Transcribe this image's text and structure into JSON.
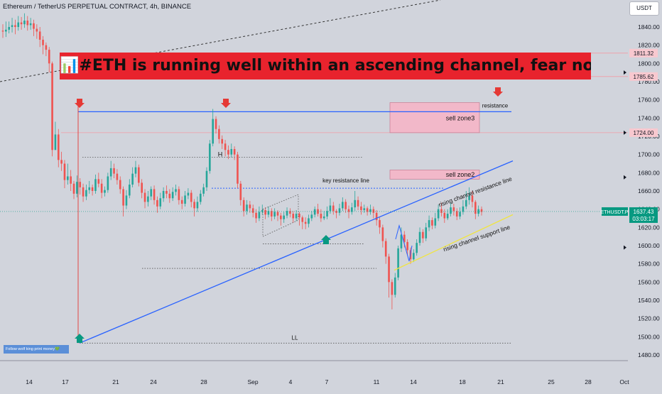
{
  "header": {
    "symbol_title": "Ethereum / TetherUS PERPETUAL CONTRACT, 4h, BINANCE",
    "currency": "USDT"
  },
  "headline": "📊#ETH is running well within an ascending channel, fear not📈",
  "watermark": "Follow wolf king print money💚",
  "colors": {
    "background": "#d1d4dc",
    "up_candle": "#26a69a",
    "down_candle": "#ef5350",
    "channel_line": "#2962ff",
    "support_line": "#f0e442",
    "zone_fill": "#f2b8c9",
    "headline_bg": "#e8232d",
    "arrow_down": "#e53935",
    "arrow_up": "#089981"
  },
  "chart_data": {
    "type": "candlestick",
    "yaxis": {
      "range": [
        1465,
        1855
      ],
      "ticks": [
        1480,
        1500,
        1520,
        1540,
        1560,
        1580,
        1600,
        1620,
        1640,
        1660,
        1680,
        1700,
        1720,
        1740,
        1760,
        1780,
        1800,
        1820,
        1840
      ]
    },
    "xaxis": {
      "labels": [
        "14",
        "17",
        "21",
        "24",
        "28",
        "Sep",
        "4",
        "7",
        "11",
        "14",
        "18",
        "21",
        "25",
        "28",
        "Oct"
      ]
    },
    "price_labels": [
      {
        "price": 1811.32,
        "text": "1811.32"
      },
      {
        "price": 1785.62,
        "text": "1785.62"
      },
      {
        "price": 1724.0,
        "text": "1724.00"
      }
    ],
    "current_price": {
      "price": 1637.43,
      "symbol": "ETHUSDT.P",
      "text": "1637.43",
      "countdown": "03:03:17"
    },
    "annotations": {
      "sell_zone_3": "sell zone3",
      "sell_zone_2": "sell zone2",
      "resistance": "resistance",
      "key_resistance": "key resistance line",
      "channel_resistance": "rising channel resistance line",
      "channel_support": "rising channel support line",
      "ll": "LL",
      "h": "H"
    },
    "zones": [
      {
        "name": "sell zone3",
        "x_from": "12",
        "x_to": "17",
        "low": 1724,
        "high": 1757
      },
      {
        "name": "sell zone2",
        "x_from": "12",
        "x_to": "17",
        "low": 1673,
        "high": 1683
      }
    ],
    "levels": [
      {
        "name": "resistance",
        "price": 1747
      },
      {
        "name": "key resistance line",
        "price": 1663
      },
      {
        "name": "LL",
        "price": 1493
      }
    ],
    "candles": [
      [
        1836,
        1835,
        1843,
        1828
      ],
      [
        1835,
        1837,
        1846,
        1829
      ],
      [
        1837,
        1840,
        1846,
        1833
      ],
      [
        1840,
        1842,
        1850,
        1834
      ],
      [
        1842,
        1840,
        1848,
        1832
      ],
      [
        1840,
        1845,
        1852,
        1836
      ],
      [
        1845,
        1843,
        1851,
        1837
      ],
      [
        1843,
        1847,
        1855,
        1839
      ],
      [
        1847,
        1842,
        1852,
        1836
      ],
      [
        1842,
        1844,
        1850,
        1837
      ],
      [
        1844,
        1838,
        1848,
        1830
      ],
      [
        1838,
        1835,
        1843,
        1827
      ],
      [
        1835,
        1826,
        1840,
        1818
      ],
      [
        1826,
        1820,
        1830,
        1810
      ],
      [
        1820,
        1815,
        1823,
        1808
      ],
      [
        1815,
        1800,
        1818,
        1790
      ],
      [
        1800,
        1705,
        1802,
        1698
      ],
      [
        1705,
        1722,
        1736,
        1705
      ],
      [
        1722,
        1694,
        1728,
        1686
      ],
      [
        1694,
        1690,
        1703,
        1682
      ],
      [
        1690,
        1672,
        1694,
        1663
      ],
      [
        1672,
        1676,
        1690,
        1667
      ],
      [
        1676,
        1668,
        1683,
        1660
      ],
      [
        1668,
        1657,
        1671,
        1651
      ],
      [
        1657,
        1670,
        1677,
        1653
      ],
      [
        1670,
        1664,
        1674,
        1656
      ],
      [
        1664,
        1654,
        1668,
        1648
      ],
      [
        1654,
        1661,
        1667,
        1650
      ],
      [
        1661,
        1664,
        1671,
        1657
      ],
      [
        1664,
        1660,
        1667,
        1655
      ],
      [
        1660,
        1673,
        1678,
        1657
      ],
      [
        1673,
        1668,
        1680,
        1664
      ],
      [
        1668,
        1658,
        1673,
        1652
      ],
      [
        1658,
        1661,
        1665,
        1654
      ],
      [
        1661,
        1676,
        1680,
        1658
      ],
      [
        1676,
        1685,
        1693,
        1672
      ],
      [
        1685,
        1679,
        1690,
        1674
      ],
      [
        1679,
        1672,
        1684,
        1667
      ],
      [
        1672,
        1662,
        1676,
        1657
      ],
      [
        1662,
        1644,
        1665,
        1632
      ],
      [
        1644,
        1655,
        1661,
        1640
      ],
      [
        1655,
        1667,
        1673,
        1652
      ],
      [
        1667,
        1679,
        1686,
        1664
      ],
      [
        1679,
        1686,
        1693,
        1675
      ],
      [
        1686,
        1669,
        1689,
        1665
      ],
      [
        1669,
        1658,
        1673,
        1652
      ],
      [
        1658,
        1648,
        1662,
        1641
      ],
      [
        1648,
        1654,
        1660,
        1643
      ],
      [
        1654,
        1662,
        1665,
        1650
      ],
      [
        1662,
        1650,
        1666,
        1645
      ],
      [
        1650,
        1643,
        1654,
        1636
      ],
      [
        1643,
        1652,
        1658,
        1640
      ],
      [
        1652,
        1660,
        1664,
        1648
      ],
      [
        1660,
        1657,
        1666,
        1652
      ],
      [
        1657,
        1652,
        1662,
        1647
      ],
      [
        1652,
        1659,
        1664,
        1649
      ],
      [
        1659,
        1662,
        1667,
        1655
      ],
      [
        1662,
        1650,
        1665,
        1645
      ],
      [
        1650,
        1646,
        1654,
        1640
      ],
      [
        1646,
        1655,
        1660,
        1643
      ],
      [
        1655,
        1658,
        1663,
        1651
      ],
      [
        1658,
        1648,
        1661,
        1642
      ],
      [
        1648,
        1641,
        1651,
        1632
      ],
      [
        1641,
        1648,
        1654,
        1637
      ],
      [
        1648,
        1657,
        1661,
        1645
      ],
      [
        1657,
        1664,
        1668,
        1654
      ],
      [
        1664,
        1682,
        1686,
        1660
      ],
      [
        1682,
        1712,
        1716,
        1679
      ],
      [
        1712,
        1739,
        1750,
        1709
      ],
      [
        1739,
        1728,
        1742,
        1723
      ],
      [
        1728,
        1717,
        1732,
        1712
      ],
      [
        1717,
        1712,
        1721,
        1706
      ],
      [
        1712,
        1705,
        1716,
        1698
      ],
      [
        1705,
        1700,
        1710,
        1695
      ],
      [
        1700,
        1706,
        1712,
        1697
      ],
      [
        1706,
        1700,
        1709,
        1694
      ],
      [
        1700,
        1668,
        1703,
        1663
      ],
      [
        1668,
        1650,
        1671,
        1644
      ],
      [
        1650,
        1638,
        1653,
        1632
      ],
      [
        1638,
        1645,
        1650,
        1634
      ],
      [
        1645,
        1641,
        1649,
        1636
      ],
      [
        1641,
        1636,
        1645,
        1631
      ],
      [
        1636,
        1630,
        1640,
        1625
      ],
      [
        1630,
        1637,
        1643,
        1627
      ],
      [
        1637,
        1639,
        1645,
        1634
      ],
      [
        1639,
        1634,
        1642,
        1629
      ],
      [
        1634,
        1638,
        1643,
        1631
      ],
      [
        1638,
        1632,
        1641,
        1627
      ],
      [
        1632,
        1637,
        1641,
        1629
      ],
      [
        1637,
        1633,
        1639,
        1627
      ],
      [
        1633,
        1629,
        1636,
        1622
      ],
      [
        1629,
        1633,
        1637,
        1625
      ],
      [
        1633,
        1638,
        1642,
        1630
      ],
      [
        1638,
        1635,
        1641,
        1631
      ],
      [
        1635,
        1630,
        1638,
        1625
      ],
      [
        1630,
        1635,
        1639,
        1627
      ],
      [
        1635,
        1631,
        1637,
        1622
      ],
      [
        1631,
        1626,
        1633,
        1618
      ],
      [
        1626,
        1624,
        1631,
        1618
      ],
      [
        1624,
        1630,
        1634,
        1620
      ],
      [
        1630,
        1634,
        1638,
        1627
      ],
      [
        1634,
        1640,
        1643,
        1631
      ],
      [
        1640,
        1635,
        1646,
        1632
      ],
      [
        1635,
        1630,
        1640,
        1626
      ],
      [
        1630,
        1632,
        1638,
        1628
      ],
      [
        1632,
        1638,
        1643,
        1629
      ],
      [
        1638,
        1644,
        1652,
        1635
      ],
      [
        1644,
        1638,
        1648,
        1634
      ],
      [
        1638,
        1636,
        1640,
        1630
      ],
      [
        1636,
        1641,
        1646,
        1633
      ],
      [
        1641,
        1648,
        1653,
        1638
      ],
      [
        1648,
        1640,
        1651,
        1636
      ],
      [
        1640,
        1637,
        1644,
        1630
      ],
      [
        1637,
        1642,
        1647,
        1634
      ],
      [
        1642,
        1650,
        1660,
        1638
      ],
      [
        1650,
        1643,
        1654,
        1639
      ],
      [
        1643,
        1639,
        1648,
        1634
      ],
      [
        1639,
        1641,
        1645,
        1636
      ],
      [
        1641,
        1637,
        1643,
        1633
      ],
      [
        1637,
        1640,
        1645,
        1634
      ],
      [
        1640,
        1636,
        1643,
        1630
      ],
      [
        1636,
        1628,
        1639,
        1622
      ],
      [
        1628,
        1620,
        1631,
        1613
      ],
      [
        1620,
        1605,
        1623,
        1598
      ],
      [
        1605,
        1588,
        1608,
        1580
      ],
      [
        1588,
        1560,
        1591,
        1543
      ],
      [
        1560,
        1546,
        1563,
        1530
      ],
      [
        1546,
        1565,
        1570,
        1543
      ],
      [
        1565,
        1597,
        1600,
        1562
      ],
      [
        1597,
        1612,
        1620,
        1593
      ],
      [
        1612,
        1604,
        1616,
        1598
      ],
      [
        1604,
        1595,
        1607,
        1589
      ],
      [
        1595,
        1585,
        1598,
        1580
      ],
      [
        1585,
        1592,
        1596,
        1582
      ],
      [
        1592,
        1603,
        1607,
        1589
      ],
      [
        1603,
        1615,
        1620,
        1600
      ],
      [
        1615,
        1608,
        1618,
        1603
      ],
      [
        1608,
        1620,
        1625,
        1605
      ],
      [
        1620,
        1628,
        1633,
        1616
      ],
      [
        1628,
        1622,
        1631,
        1618
      ],
      [
        1622,
        1630,
        1636,
        1619
      ],
      [
        1630,
        1640,
        1645,
        1627
      ],
      [
        1640,
        1636,
        1647,
        1632
      ],
      [
        1636,
        1630,
        1640,
        1625
      ],
      [
        1630,
        1635,
        1640,
        1628
      ],
      [
        1635,
        1642,
        1647,
        1632
      ],
      [
        1642,
        1638,
        1646,
        1633
      ],
      [
        1638,
        1632,
        1641,
        1628
      ],
      [
        1632,
        1637,
        1642,
        1629
      ],
      [
        1637,
        1643,
        1650,
        1634
      ],
      [
        1643,
        1650,
        1660,
        1640
      ],
      [
        1650,
        1655,
        1664,
        1645
      ],
      [
        1655,
        1648,
        1660,
        1642
      ],
      [
        1648,
        1635,
        1650,
        1629
      ],
      [
        1635,
        1640,
        1644,
        1632
      ],
      [
        1640,
        1637,
        1643,
        1633
      ]
    ]
  }
}
